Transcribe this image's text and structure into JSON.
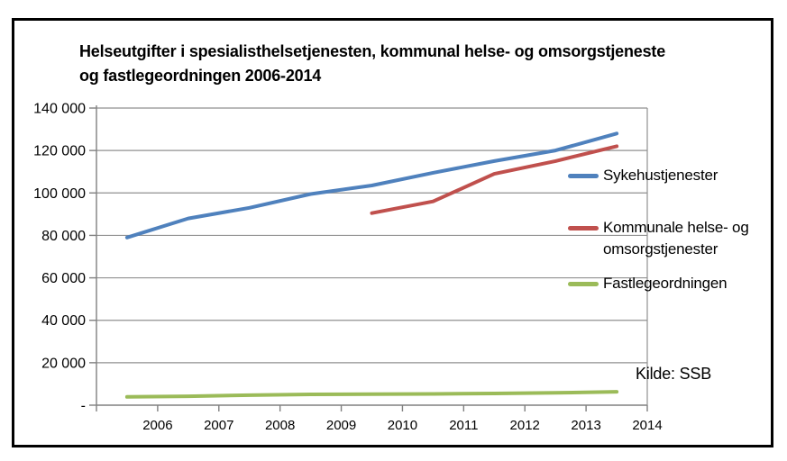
{
  "window": {
    "background_color": "#ffffff",
    "frame_color": "#000000"
  },
  "chart_data": {
    "type": "line",
    "title": "Helseutgifter i spesialisthelsetjenesten, kommunal helse- og omsorgstjeneste og fastlegeordningen 2006-2014",
    "title_line1": "Helseutgifter i spesialisthelsetjenesten, kommunal helse- og omsorgstjeneste",
    "title_line2": "og fastlegeordningen 2006-2014",
    "xlabel": "",
    "ylabel": "",
    "ylim": [
      0,
      140000
    ],
    "grid": "horizontal-only",
    "legend_position": "right-inside-plot",
    "categories": [
      "2006",
      "2007",
      "2008",
      "2009",
      "2010",
      "2011",
      "2012",
      "2013",
      "2014"
    ],
    "y_axis_ticks": [
      {
        "label": "140 000",
        "value": 140000
      },
      {
        "label": "120 000",
        "value": 120000
      },
      {
        "label": "100 000",
        "value": 100000
      },
      {
        "label": "80 000",
        "value": 80000
      },
      {
        "label": "60 000",
        "value": 60000
      },
      {
        "label": "40 000",
        "value": 40000
      },
      {
        "label": "20 000",
        "value": 20000
      },
      {
        "label": "-",
        "value": 0
      }
    ],
    "series": [
      {
        "name": "Sykehustjenester",
        "color": "#4F81BD",
        "start_index": 0,
        "values": [
          79000,
          88000,
          93000,
          99500,
          103500,
          109500,
          115000,
          120000,
          128000
        ]
      },
      {
        "name": "Kommunale helse- og omsorgstjenester",
        "color": "#C0504D",
        "start_index": 4,
        "values": [
          90500,
          96000,
          109000,
          115000,
          122000
        ]
      },
      {
        "name": "Fastlegeordningen",
        "color": "#9BBB59",
        "start_index": 0,
        "values": [
          3900,
          4200,
          4700,
          5100,
          5200,
          5300,
          5500,
          5800,
          6300
        ]
      }
    ],
    "source_note": "Kilde: SSB",
    "axis_color": "#808080",
    "gridline_color": "#919191"
  }
}
